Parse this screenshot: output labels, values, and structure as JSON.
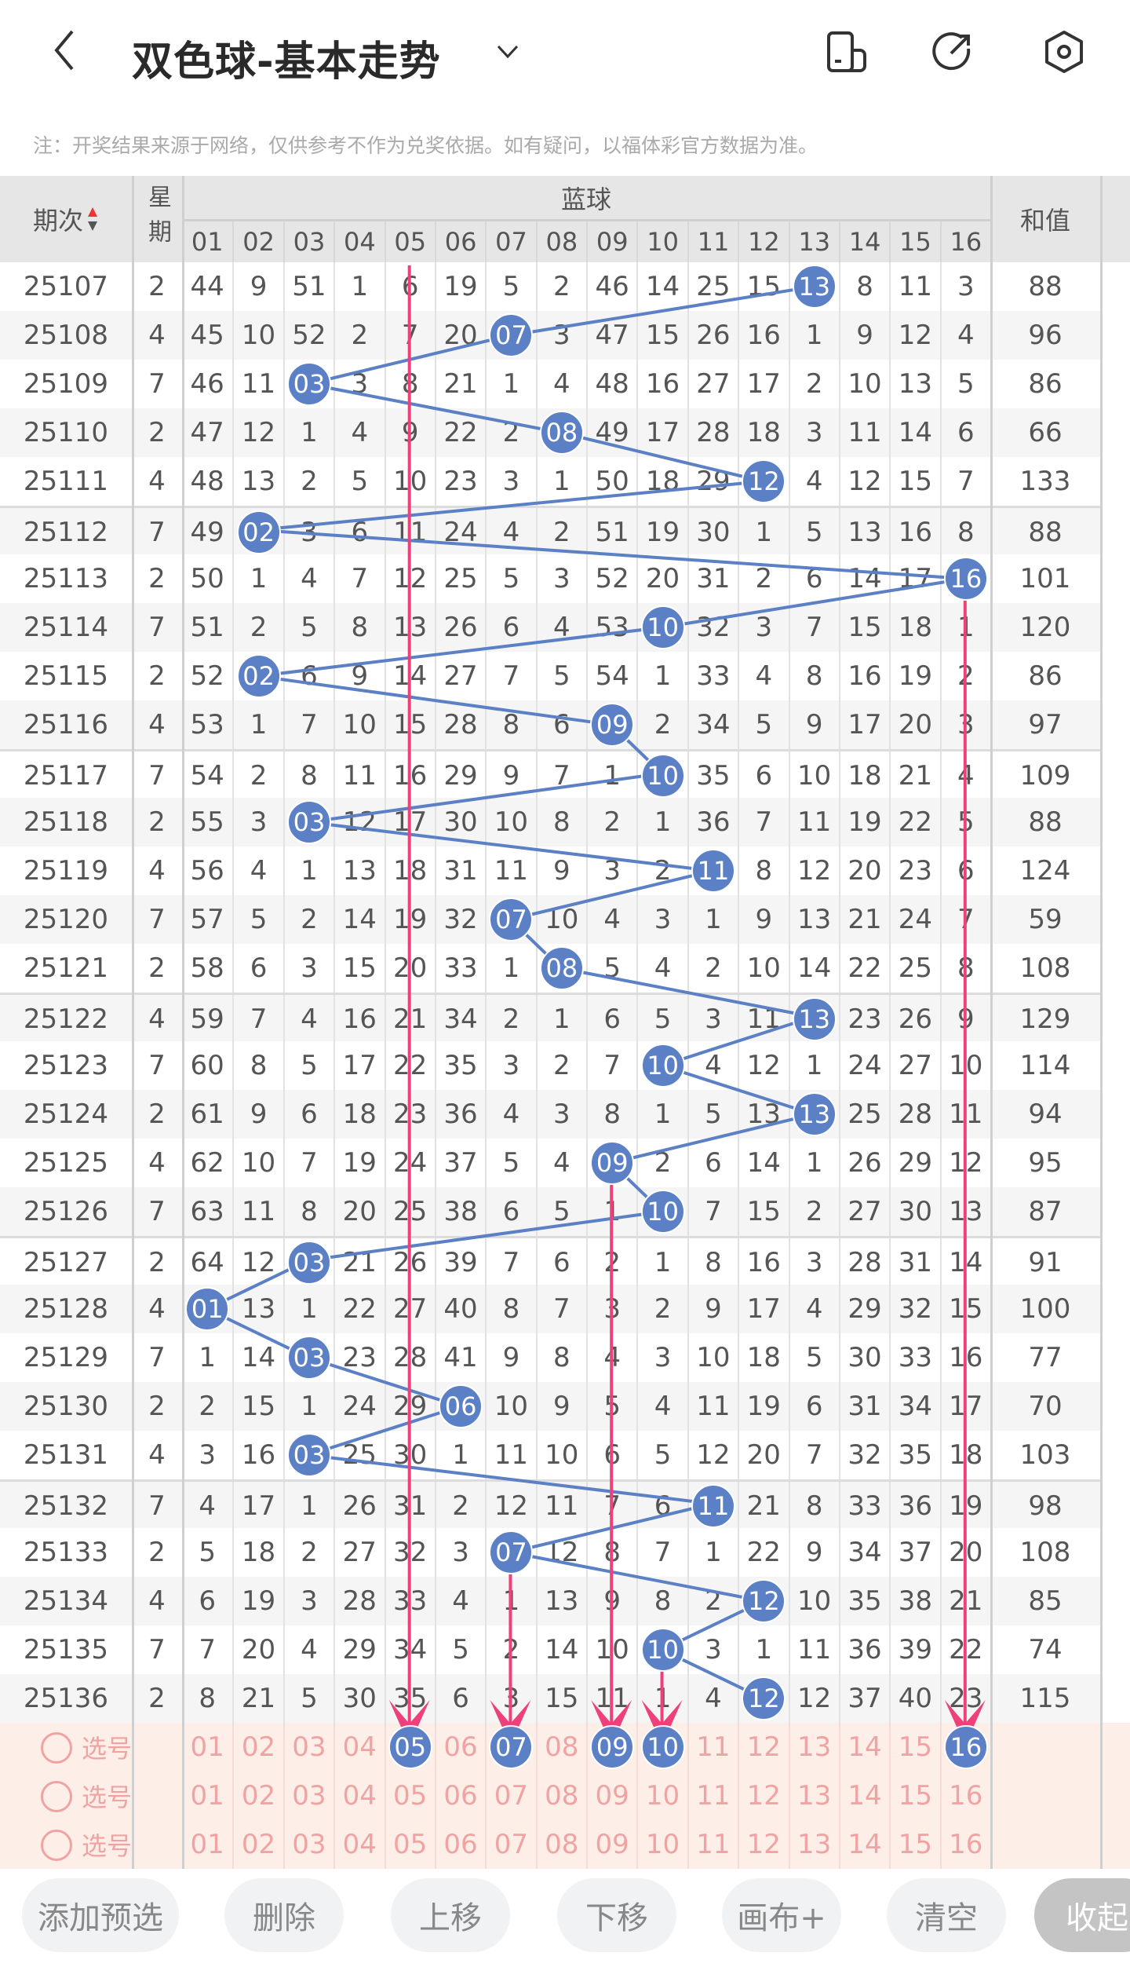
{
  "header": {
    "title": "双色球-基本走势",
    "icons": [
      "back-icon",
      "chevron-down-icon",
      "phone-layout-icon",
      "share-icon",
      "settings-icon"
    ]
  },
  "note": "注：开奖结果来源于网络，仅供参考不作为兑奖依据。如有疑问，以福体彩官方数据为准。",
  "table": {
    "col_period": "期次",
    "col_weekday": "星期",
    "group_label": "蓝球",
    "col_sum": "和值",
    "ball_headers": [
      "01",
      "02",
      "03",
      "04",
      "05",
      "06",
      "07",
      "08",
      "09",
      "10",
      "11",
      "12",
      "13",
      "14",
      "15",
      "16"
    ],
    "rows": [
      {
        "period": "25107",
        "wd": "2",
        "cells": [
          44,
          9,
          51,
          1,
          6,
          19,
          5,
          2,
          46,
          14,
          25,
          15,
          13,
          8,
          11,
          3
        ],
        "hit": 13,
        "sum": "88"
      },
      {
        "period": "25108",
        "wd": "4",
        "cells": [
          45,
          10,
          52,
          2,
          7,
          20,
          7,
          3,
          47,
          15,
          26,
          16,
          1,
          9,
          12,
          4
        ],
        "hit": 7,
        "sum": "96"
      },
      {
        "period": "25109",
        "wd": "7",
        "cells": [
          46,
          11,
          3,
          3,
          8,
          21,
          1,
          4,
          48,
          16,
          27,
          17,
          2,
          10,
          13,
          5
        ],
        "hit": 3,
        "sum": "86"
      },
      {
        "period": "25110",
        "wd": "2",
        "cells": [
          47,
          12,
          1,
          4,
          9,
          22,
          2,
          8,
          49,
          17,
          28,
          18,
          3,
          11,
          14,
          6
        ],
        "hit": 8,
        "sum": "66"
      },
      {
        "period": "25111",
        "wd": "4",
        "cells": [
          48,
          13,
          2,
          5,
          10,
          23,
          3,
          1,
          50,
          18,
          29,
          12,
          4,
          12,
          15,
          7
        ],
        "hit": 12,
        "sum": "133"
      },
      {
        "period": "25112",
        "wd": "7",
        "cells": [
          49,
          2,
          3,
          6,
          11,
          24,
          4,
          2,
          51,
          19,
          30,
          1,
          5,
          13,
          16,
          8
        ],
        "hit": 2,
        "sum": "88"
      },
      {
        "period": "25113",
        "wd": "2",
        "cells": [
          50,
          1,
          4,
          7,
          12,
          25,
          5,
          3,
          52,
          20,
          31,
          2,
          6,
          14,
          17,
          16
        ],
        "hit": 16,
        "sum": "101"
      },
      {
        "period": "25114",
        "wd": "7",
        "cells": [
          51,
          2,
          5,
          8,
          13,
          26,
          6,
          4,
          53,
          10,
          32,
          3,
          7,
          15,
          18,
          1
        ],
        "hit": 10,
        "sum": "120"
      },
      {
        "period": "25115",
        "wd": "2",
        "cells": [
          52,
          2,
          6,
          9,
          14,
          27,
          7,
          5,
          54,
          1,
          33,
          4,
          8,
          16,
          19,
          2
        ],
        "hit": 2,
        "sum": "86"
      },
      {
        "period": "25116",
        "wd": "4",
        "cells": [
          53,
          1,
          7,
          10,
          15,
          28,
          8,
          6,
          9,
          2,
          34,
          5,
          9,
          17,
          20,
          3
        ],
        "hit": 9,
        "sum": "97"
      },
      {
        "period": "25117",
        "wd": "7",
        "cells": [
          54,
          2,
          8,
          11,
          16,
          29,
          9,
          7,
          1,
          10,
          35,
          6,
          10,
          18,
          21,
          4
        ],
        "hit": 10,
        "sum": "109"
      },
      {
        "period": "25118",
        "wd": "2",
        "cells": [
          55,
          3,
          3,
          12,
          17,
          30,
          10,
          8,
          2,
          1,
          36,
          7,
          11,
          19,
          22,
          5
        ],
        "hit": 3,
        "sum": "88"
      },
      {
        "period": "25119",
        "wd": "4",
        "cells": [
          56,
          4,
          1,
          13,
          18,
          31,
          11,
          9,
          3,
          2,
          11,
          8,
          12,
          20,
          23,
          6
        ],
        "hit": 11,
        "sum": "124"
      },
      {
        "period": "25120",
        "wd": "7",
        "cells": [
          57,
          5,
          2,
          14,
          19,
          32,
          7,
          10,
          4,
          3,
          1,
          9,
          13,
          21,
          24,
          7
        ],
        "hit": 7,
        "sum": "59"
      },
      {
        "period": "25121",
        "wd": "2",
        "cells": [
          58,
          6,
          3,
          15,
          20,
          33,
          1,
          8,
          5,
          4,
          2,
          10,
          14,
          22,
          25,
          8
        ],
        "hit": 8,
        "sum": "108"
      },
      {
        "period": "25122",
        "wd": "4",
        "cells": [
          59,
          7,
          4,
          16,
          21,
          34,
          2,
          1,
          6,
          5,
          3,
          11,
          13,
          23,
          26,
          9
        ],
        "hit": 13,
        "sum": "129"
      },
      {
        "period": "25123",
        "wd": "7",
        "cells": [
          60,
          8,
          5,
          17,
          22,
          35,
          3,
          2,
          7,
          10,
          4,
          12,
          1,
          24,
          27,
          10
        ],
        "hit": 10,
        "sum": "114"
      },
      {
        "period": "25124",
        "wd": "2",
        "cells": [
          61,
          9,
          6,
          18,
          23,
          36,
          4,
          3,
          8,
          1,
          5,
          13,
          13,
          25,
          28,
          11
        ],
        "hit": 13,
        "sum": "94"
      },
      {
        "period": "25125",
        "wd": "4",
        "cells": [
          62,
          10,
          7,
          19,
          24,
          37,
          5,
          4,
          9,
          2,
          6,
          14,
          1,
          26,
          29,
          12
        ],
        "hit": 9,
        "sum": "95"
      },
      {
        "period": "25126",
        "wd": "7",
        "cells": [
          63,
          11,
          8,
          20,
          25,
          38,
          6,
          5,
          1,
          10,
          7,
          15,
          2,
          27,
          30,
          13
        ],
        "hit": 10,
        "sum": "87"
      },
      {
        "period": "25127",
        "wd": "2",
        "cells": [
          64,
          12,
          3,
          21,
          26,
          39,
          7,
          6,
          2,
          1,
          8,
          16,
          3,
          28,
          31,
          14
        ],
        "hit": 3,
        "sum": "91"
      },
      {
        "period": "25128",
        "wd": "4",
        "cells": [
          1,
          13,
          1,
          22,
          27,
          40,
          8,
          7,
          3,
          2,
          9,
          17,
          4,
          29,
          32,
          15
        ],
        "hit": 1,
        "sum": "100"
      },
      {
        "period": "25129",
        "wd": "7",
        "cells": [
          1,
          14,
          3,
          23,
          28,
          41,
          9,
          8,
          4,
          3,
          10,
          18,
          5,
          30,
          33,
          16
        ],
        "hit": 3,
        "sum": "77"
      },
      {
        "period": "25130",
        "wd": "2",
        "cells": [
          2,
          15,
          1,
          24,
          29,
          6,
          10,
          9,
          5,
          4,
          11,
          19,
          6,
          31,
          34,
          17
        ],
        "hit": 6,
        "sum": "70"
      },
      {
        "period": "25131",
        "wd": "4",
        "cells": [
          3,
          16,
          3,
          25,
          30,
          1,
          11,
          10,
          6,
          5,
          12,
          20,
          7,
          32,
          35,
          18
        ],
        "hit": 3,
        "sum": "103"
      },
      {
        "period": "25132",
        "wd": "7",
        "cells": [
          4,
          17,
          1,
          26,
          31,
          2,
          12,
          11,
          7,
          6,
          11,
          21,
          8,
          33,
          36,
          19
        ],
        "hit": 11,
        "sum": "98"
      },
      {
        "period": "25133",
        "wd": "2",
        "cells": [
          5,
          18,
          2,
          27,
          32,
          3,
          7,
          12,
          8,
          7,
          1,
          22,
          9,
          34,
          37,
          20
        ],
        "hit": 7,
        "sum": "108"
      },
      {
        "period": "25134",
        "wd": "4",
        "cells": [
          6,
          19,
          3,
          28,
          33,
          4,
          1,
          13,
          9,
          8,
          2,
          12,
          10,
          35,
          38,
          21
        ],
        "hit": 12,
        "sum": "85"
      },
      {
        "period": "25135",
        "wd": "7",
        "cells": [
          7,
          20,
          4,
          29,
          34,
          5,
          2,
          14,
          10,
          10,
          3,
          1,
          11,
          36,
          39,
          22
        ],
        "hit": 10,
        "sum": "74"
      },
      {
        "period": "25136",
        "wd": "2",
        "cells": [
          8,
          21,
          5,
          30,
          35,
          6,
          3,
          15,
          11,
          1,
          4,
          12,
          12,
          37,
          40,
          23
        ],
        "hit": 12,
        "sum": "115"
      }
    ]
  },
  "selection": {
    "label": "选号",
    "rows": [
      {
        "selected": [
          5,
          7,
          9,
          10,
          16
        ]
      },
      {
        "selected": []
      },
      {
        "selected": []
      }
    ]
  },
  "buttons": [
    "添加预选",
    "删除",
    "上移",
    "下移",
    "画布+",
    "清空",
    "收起"
  ],
  "colors": {
    "ball": "#5b80c6",
    "arrow": "#f0407a",
    "pick_text": "#f0a3a3"
  }
}
